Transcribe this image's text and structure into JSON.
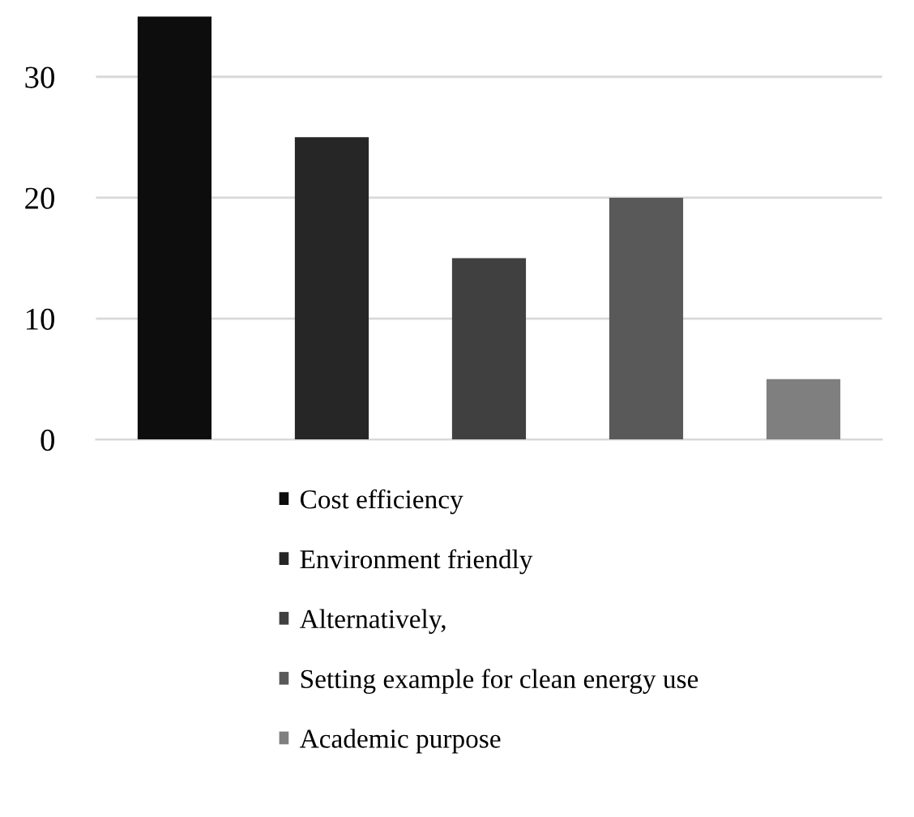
{
  "chart_data": {
    "type": "bar",
    "categories": [
      null
    ],
    "series": [
      {
        "name": "Cost efficiency",
        "color": "#0d0d0d",
        "values": [
          35
        ]
      },
      {
        "name": "Environment friendly",
        "color": "#262626",
        "values": [
          25
        ]
      },
      {
        "name": "Alternatively,",
        "color": "#404040",
        "values": [
          15
        ]
      },
      {
        "name": "Setting example for clean energy use",
        "color": "#595959",
        "values": [
          20
        ]
      },
      {
        "name": "Academic purpose",
        "color": "#7f7f7f",
        "values": [
          5
        ]
      }
    ],
    "ylim": [
      0,
      35
    ],
    "yticks": [
      0,
      10,
      20,
      30
    ],
    "grid": "y",
    "legend": "bottom"
  }
}
